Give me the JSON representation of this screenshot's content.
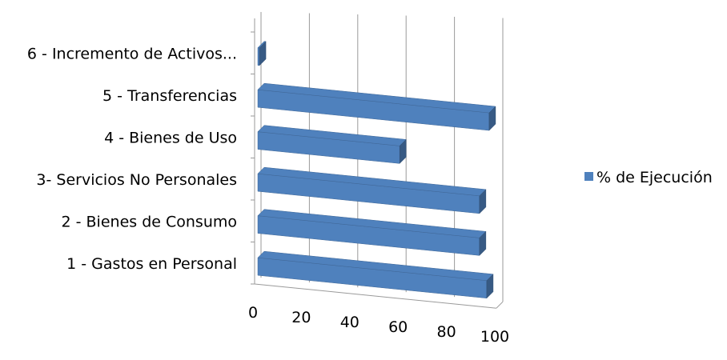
{
  "chart_data": {
    "type": "bar",
    "orientation": "horizontal",
    "style": "3d-clustered",
    "categories": [
      "1 - Gastos en Personal",
      "2 - Bienes de Consumo",
      "3- Servicios No Personales",
      "4 - Bienes de Uso",
      "5 - Transferencias",
      "6 - Incremento de Activos..."
    ],
    "series": [
      {
        "name": "% de Ejecución",
        "color": "#4F81BD",
        "values": [
          96,
          93,
          93,
          60,
          97,
          2
        ]
      }
    ],
    "x_ticks": [
      "0",
      "20",
      "40",
      "60",
      "80",
      "100"
    ],
    "xlim": [
      0,
      100
    ],
    "grid": "vertical",
    "legend": "right"
  }
}
